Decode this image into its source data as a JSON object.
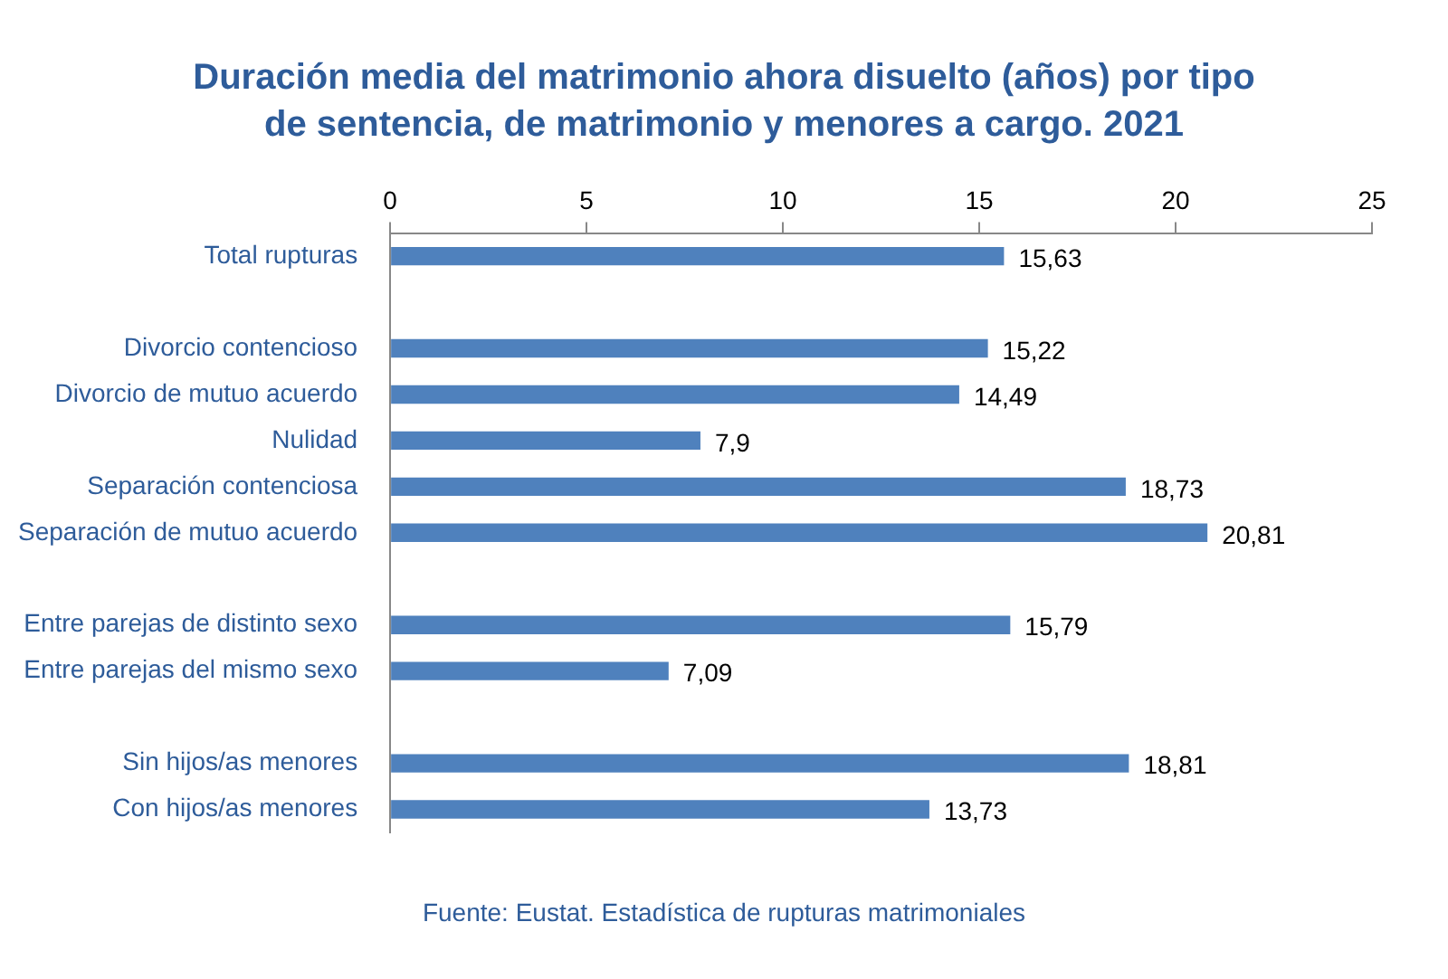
{
  "chart_data": {
    "type": "bar",
    "orientation": "horizontal",
    "title": "Duración media del matrimonio ahora disuelto (años) por tipo de sentencia, de matrimonio y menores a cargo. 2021",
    "categories": [
      "Total rupturas",
      null,
      "Divorcio contencioso",
      "Divorcio de mutuo acuerdo",
      "Nulidad",
      "Separación contenciosa",
      "Separación de mutuo acuerdo",
      null,
      "Entre parejas de distinto sexo",
      "Entre parejas del mismo sexo",
      null,
      "Sin hijos/as menores",
      "Con hijos/as menores"
    ],
    "values": [
      15.63,
      null,
      15.22,
      14.49,
      7.9,
      18.73,
      20.81,
      null,
      15.79,
      7.09,
      null,
      18.81,
      13.73
    ],
    "value_labels": [
      "15,63",
      null,
      "15,22",
      "14,49",
      "7,9",
      "18,73",
      "20,81",
      null,
      "15,79",
      "7,09",
      null,
      "18,81",
      "13,73"
    ],
    "color": "#4f81bd",
    "xlim": [
      0,
      25
    ],
    "xticks": [
      0,
      5,
      10,
      15,
      20,
      25
    ],
    "grid": false,
    "legend": false,
    "annotations": [
      "Fuente: Eustat. Estadística de rupturas matrimoniales"
    ]
  }
}
